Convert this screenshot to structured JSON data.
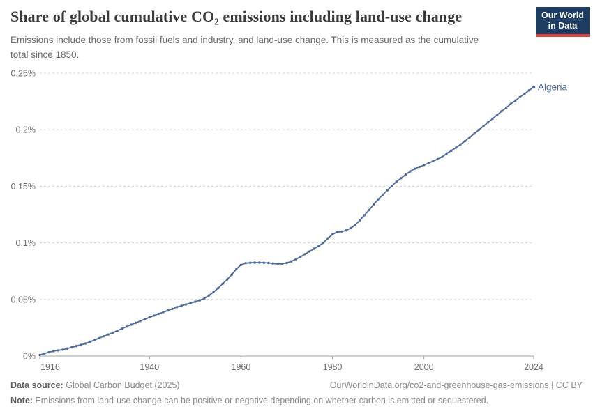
{
  "header": {
    "title": "Share of global cumulative CO₂ emissions including land-use change",
    "subtitle": "Emissions include those from fossil fuels and industry, and land-use change. This is measured as the cumulative total since 1850."
  },
  "logo": {
    "line1": "Our World",
    "line2": "in Data",
    "bg_color": "#1d3d63",
    "stripe_color": "#dc3e3e"
  },
  "chart_data": {
    "type": "line",
    "title": "Share of global cumulative CO₂ emissions including land-use change",
    "entity": "Algeria",
    "unit": "%",
    "xlabel": "",
    "ylabel": "",
    "x_range": [
      1916,
      2024
    ],
    "ylim": [
      0,
      0.25
    ],
    "grid": "horizontal-dashed",
    "legend_position": "end-of-line-label",
    "line_color": "#4c6a9c",
    "grid_color": "#d5d5d5",
    "axis_color": "#a1a1a1",
    "tick_label_color": "#6e6e6e",
    "y_ticks": [
      {
        "v": 0,
        "label": "0%"
      },
      {
        "v": 0.05,
        "label": "0.05%"
      },
      {
        "v": 0.1,
        "label": "0.1%"
      },
      {
        "v": 0.15,
        "label": "0.15%"
      },
      {
        "v": 0.2,
        "label": "0.2%"
      },
      {
        "v": 0.25,
        "label": "0.25%"
      }
    ],
    "x_ticks": [
      1916,
      1940,
      1960,
      1980,
      2000,
      2024
    ],
    "series": [
      {
        "name": "Algeria",
        "points": [
          [
            1916,
            0.001
          ],
          [
            1917,
            0.0022
          ],
          [
            1918,
            0.0033
          ],
          [
            1919,
            0.0044
          ],
          [
            1920,
            0.005
          ],
          [
            1921,
            0.0056
          ],
          [
            1922,
            0.0066
          ],
          [
            1923,
            0.0077
          ],
          [
            1924,
            0.0088
          ],
          [
            1925,
            0.0099
          ],
          [
            1926,
            0.0111
          ],
          [
            1927,
            0.0126
          ],
          [
            1928,
            0.0142
          ],
          [
            1929,
            0.0158
          ],
          [
            1930,
            0.0174
          ],
          [
            1931,
            0.019
          ],
          [
            1932,
            0.0207
          ],
          [
            1933,
            0.0224
          ],
          [
            1934,
            0.0242
          ],
          [
            1935,
            0.026
          ],
          [
            1936,
            0.0278
          ],
          [
            1937,
            0.0294
          ],
          [
            1938,
            0.031
          ],
          [
            1939,
            0.0326
          ],
          [
            1940,
            0.0342
          ],
          [
            1941,
            0.0358
          ],
          [
            1942,
            0.0373
          ],
          [
            1943,
            0.0388
          ],
          [
            1944,
            0.0403
          ],
          [
            1945,
            0.0417
          ],
          [
            1946,
            0.0432
          ],
          [
            1947,
            0.0444
          ],
          [
            1948,
            0.0456
          ],
          [
            1949,
            0.0468
          ],
          [
            1950,
            0.048
          ],
          [
            1951,
            0.0492
          ],
          [
            1952,
            0.051
          ],
          [
            1953,
            0.0535
          ],
          [
            1954,
            0.0565
          ],
          [
            1955,
            0.06
          ],
          [
            1956,
            0.0638
          ],
          [
            1957,
            0.0678
          ],
          [
            1958,
            0.072
          ],
          [
            1959,
            0.077
          ],
          [
            1960,
            0.0805
          ],
          [
            1961,
            0.082
          ],
          [
            1962,
            0.0824
          ],
          [
            1963,
            0.0825
          ],
          [
            1964,
            0.0825
          ],
          [
            1965,
            0.0824
          ],
          [
            1966,
            0.0822
          ],
          [
            1967,
            0.0818
          ],
          [
            1968,
            0.0814
          ],
          [
            1969,
            0.0815
          ],
          [
            1970,
            0.0822
          ],
          [
            1971,
            0.0836
          ],
          [
            1972,
            0.0855
          ],
          [
            1973,
            0.0877
          ],
          [
            1974,
            0.09
          ],
          [
            1975,
            0.0924
          ],
          [
            1976,
            0.0948
          ],
          [
            1977,
            0.0972
          ],
          [
            1978,
            0.1
          ],
          [
            1979,
            0.104
          ],
          [
            1980,
            0.1075
          ],
          [
            1981,
            0.1095
          ],
          [
            1982,
            0.11
          ],
          [
            1983,
            0.111
          ],
          [
            1984,
            0.113
          ],
          [
            1985,
            0.116
          ],
          [
            1986,
            0.12
          ],
          [
            1987,
            0.1245
          ],
          [
            1988,
            0.129
          ],
          [
            1989,
            0.134
          ],
          [
            1990,
            0.1385
          ],
          [
            1991,
            0.1425
          ],
          [
            1992,
            0.1465
          ],
          [
            1993,
            0.1505
          ],
          [
            1994,
            0.154
          ],
          [
            1995,
            0.1572
          ],
          [
            1996,
            0.1603
          ],
          [
            1997,
            0.1632
          ],
          [
            1998,
            0.1655
          ],
          [
            1999,
            0.1672
          ],
          [
            2000,
            0.1688
          ],
          [
            2001,
            0.1705
          ],
          [
            2002,
            0.1722
          ],
          [
            2003,
            0.174
          ],
          [
            2004,
            0.176
          ],
          [
            2005,
            0.179
          ],
          [
            2006,
            0.1815
          ],
          [
            2007,
            0.1842
          ],
          [
            2008,
            0.187
          ],
          [
            2009,
            0.19
          ],
          [
            2010,
            0.1932
          ],
          [
            2011,
            0.1965
          ],
          [
            2012,
            0.1998
          ],
          [
            2013,
            0.2031
          ],
          [
            2014,
            0.2064
          ],
          [
            2015,
            0.2097
          ],
          [
            2016,
            0.213
          ],
          [
            2017,
            0.2163
          ],
          [
            2018,
            0.2196
          ],
          [
            2019,
            0.2228
          ],
          [
            2020,
            0.2258
          ],
          [
            2021,
            0.2288
          ],
          [
            2022,
            0.2318
          ],
          [
            2023,
            0.2348
          ],
          [
            2024,
            0.2376
          ]
        ]
      }
    ]
  },
  "footer": {
    "datasource_label": "Data source:",
    "datasource_value": "Global Carbon Budget (2025)",
    "url": "OurWorldinData.org/co2-and-greenhouse-gas-emissions | CC BY",
    "note_label": "Note:",
    "note_text": "Emissions from land-use change can be positive or negative depending on whether carbon is emitted or sequestered."
  }
}
